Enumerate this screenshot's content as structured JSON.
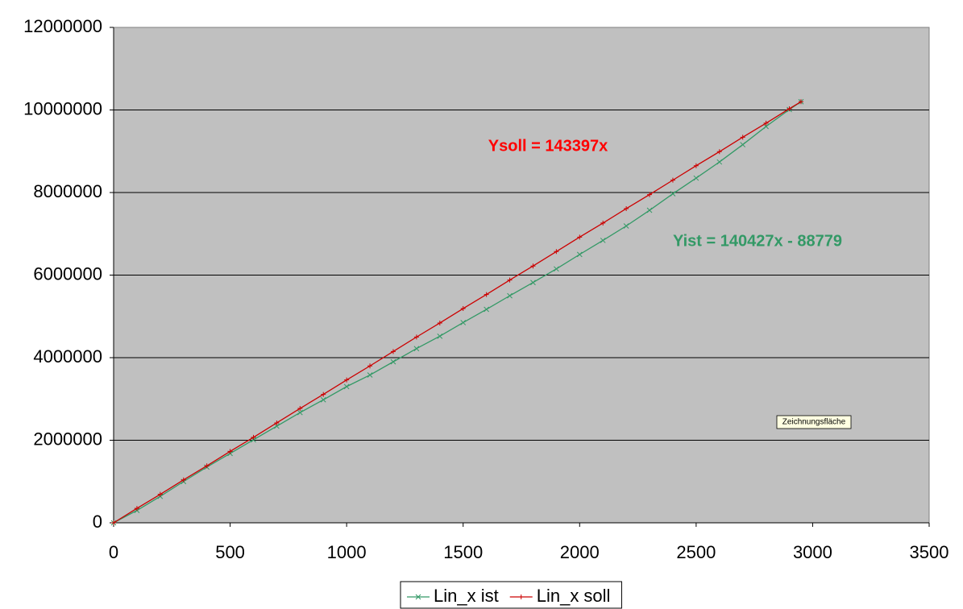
{
  "chart_data": {
    "type": "line",
    "x": [
      0,
      100,
      200,
      300,
      400,
      500,
      600,
      700,
      800,
      900,
      1000,
      1100,
      1200,
      1300,
      1400,
      1500,
      1600,
      1700,
      1800,
      1900,
      2000,
      2100,
      2200,
      2300,
      2400,
      2500,
      2600,
      2700,
      2800,
      2900,
      2950
    ],
    "series": [
      {
        "name": "Lin_x ist",
        "color": "#339966",
        "marker": "x",
        "values": [
          0,
          300000,
          640000,
          1000000,
          1350000,
          1680000,
          2010000,
          2340000,
          2670000,
          2980000,
          3300000,
          3580000,
          3900000,
          4220000,
          4520000,
          4850000,
          5170000,
          5500000,
          5820000,
          6150000,
          6500000,
          6840000,
          7190000,
          7570000,
          7970000,
          8350000,
          8740000,
          9160000,
          9600000,
          10010000,
          10200000
        ]
      },
      {
        "name": "Lin_x soll",
        "color": "#cc0000",
        "marker": "+",
        "values": [
          0,
          350000,
          690000,
          1040000,
          1380000,
          1730000,
          2070000,
          2420000,
          2770000,
          3110000,
          3460000,
          3800000,
          4150000,
          4500000,
          4840000,
          5190000,
          5530000,
          5880000,
          6220000,
          6570000,
          6920000,
          7260000,
          7610000,
          7950000,
          8300000,
          8650000,
          8990000,
          9340000,
          9680000,
          10030000,
          10200000
        ]
      }
    ],
    "annotations": [
      {
        "text": "Ysoll = 143397x",
        "color": "#ff0000"
      },
      {
        "text": "Yist = 140427x - 88779",
        "color": "#339966"
      }
    ],
    "tooltip": "Zeichnungsfläche",
    "xlim": [
      0,
      3500
    ],
    "xticks": [
      0,
      500,
      1000,
      1500,
      2000,
      2500,
      3000,
      3500
    ],
    "ylim": [
      0,
      12000000
    ],
    "yticks": [
      0,
      2000000,
      4000000,
      6000000,
      8000000,
      10000000,
      12000000
    ],
    "grid": true,
    "plot_background": "#c0c0c0",
    "legend": "bottom"
  }
}
